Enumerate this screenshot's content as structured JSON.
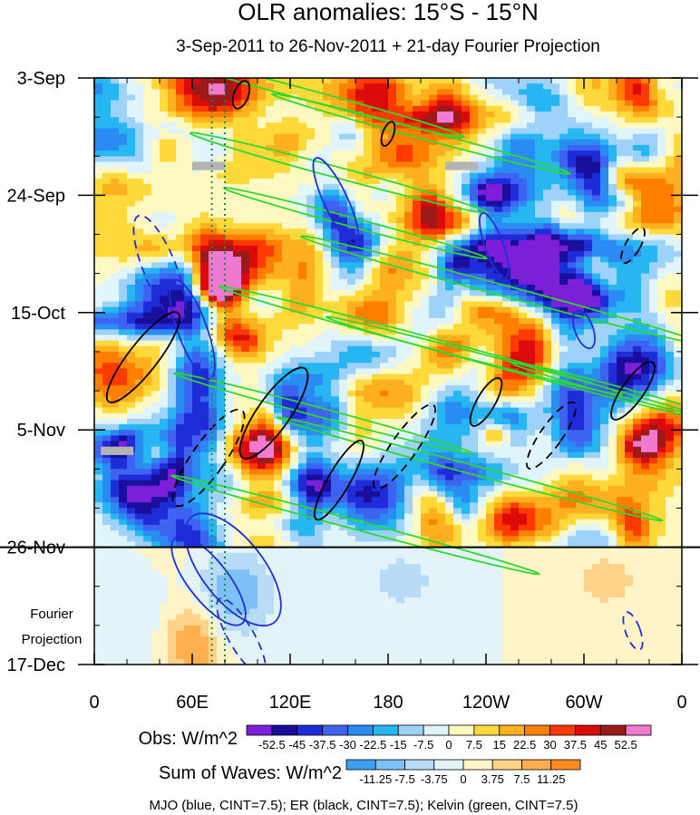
{
  "chart_data": {
    "type": "heatmap",
    "title": "OLR anomalies: 15°S - 15°N",
    "subtitle": "3-Sep-2011 to 26-Nov-2011 + 21-day Fourier Projection",
    "x_axis": {
      "ticks": [
        "0",
        "60E",
        "120E",
        "180",
        "120W",
        "60W",
        "0"
      ],
      "range": [
        0,
        360
      ],
      "minor_step": 20
    },
    "y_axis": {
      "ticks": [
        "3-Sep",
        "24-Sep",
        "15-Oct",
        "5-Nov",
        "26-Nov",
        "17-Dec"
      ],
      "range_days": [
        0,
        105
      ],
      "tick_step_days": 21,
      "minor_step_days": 7
    },
    "projection_label": [
      "Fourier",
      "Projection"
    ],
    "projection_start": "26-Nov",
    "vertical_marker_longitudes": [
      72,
      80
    ],
    "obs_colorbar": {
      "title": "Obs: W/m^2",
      "labels": [
        "-52.5",
        "-45",
        "-37.5",
        "-30",
        "-22.5",
        "-15",
        "-7.5",
        "0",
        "7.5",
        "15",
        "22.5",
        "30",
        "37.5",
        "45",
        "52.5"
      ],
      "colors": [
        "#7b1fd8",
        "#1a0f9c",
        "#1e2dd8",
        "#3e63f0",
        "#2a8cf2",
        "#27b6f2",
        "#9fd2f8",
        "#dff5fb",
        "#fff8c0",
        "#ffd83a",
        "#ffb01f",
        "#ff7f00",
        "#ff3a00",
        "#dc0b0b",
        "#9c1a1a",
        "#f07ad0"
      ]
    },
    "waves_colorbar": {
      "title": "Sum of Waves: W/m^2",
      "labels": [
        "-11.25",
        "-7.5",
        "-3.75",
        "0",
        "3.75",
        "7.5",
        "11.25"
      ],
      "colors": [
        "#3ba0f4",
        "#7cc0f6",
        "#b8dcf7",
        "#e2f3f9",
        "#fff4c8",
        "#ffd28a",
        "#ffae50",
        "#ff8a1e"
      ]
    },
    "footnote": "MJO (blue, CINT=7.5); ER (black, CINT=7.5); Kelvin (green, CINT=7.5)",
    "wave_contours": {
      "mjo": {
        "color": "#1f2fd6",
        "cint": 7.5
      },
      "er": {
        "color": "#000000",
        "cint": 7.5
      },
      "kelvin": {
        "color": "#2fd82f",
        "cint": 7.5
      }
    },
    "missing_data_color": "#b4b4b4",
    "grid": false
  }
}
